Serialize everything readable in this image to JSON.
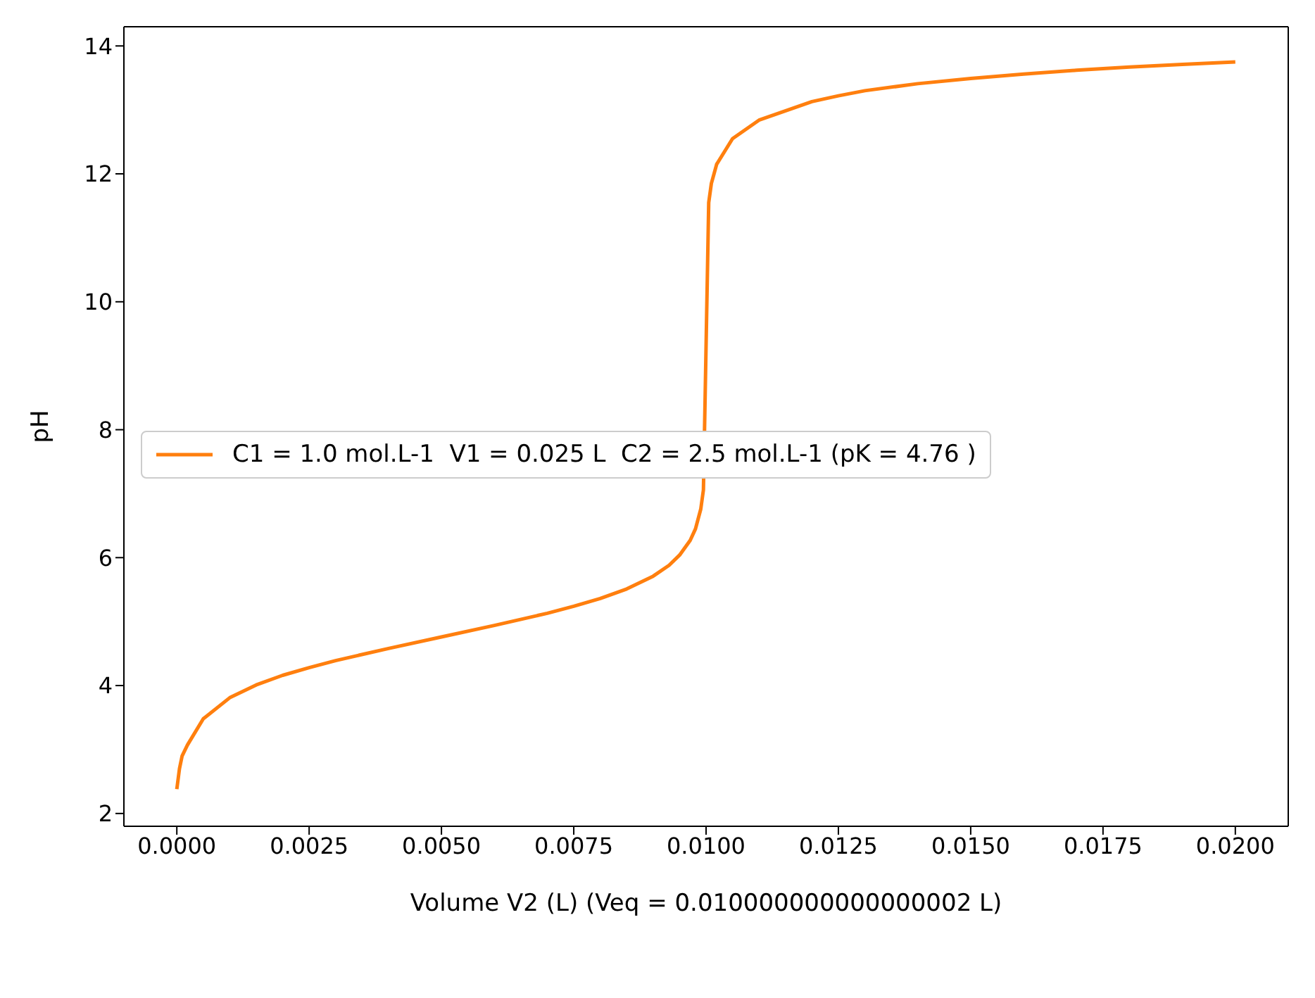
{
  "chart_data": {
    "type": "line",
    "xlabel": "Volume V2 (L) (Veq = 0.010000000000000002 L)",
    "ylabel": "pH",
    "x": [
      0,
      5e-05,
      0.0001,
      0.0002,
      0.0005,
      0.001,
      0.0015,
      0.002,
      0.0025,
      0.003,
      0.004,
      0.005,
      0.006,
      0.007,
      0.0075,
      0.008,
      0.0085,
      0.009,
      0.0093,
      0.0095,
      0.0097,
      0.0098,
      0.0099,
      0.00995,
      0.01,
      0.01005,
      0.0101,
      0.0102,
      0.0105,
      0.011,
      0.012,
      0.0125,
      0.013,
      0.014,
      0.015,
      0.016,
      0.017,
      0.018,
      0.019,
      0.02
    ],
    "series": [
      {
        "name": "C1 = 1.0 mol.L-1  V1 = 0.025 L  C2 = 2.5 mol.L-1 (pK = 4.76 )",
        "color": "#ff7f0e",
        "values": [
          2.38,
          2.7,
          2.9,
          3.07,
          3.48,
          3.81,
          4.01,
          4.16,
          4.28,
          4.39,
          4.58,
          4.76,
          4.94,
          5.13,
          5.24,
          5.36,
          5.51,
          5.71,
          5.88,
          6.04,
          6.27,
          6.45,
          6.76,
          7.06,
          9.31,
          11.55,
          11.85,
          12.15,
          12.55,
          12.84,
          13.13,
          13.22,
          13.3,
          13.41,
          13.49,
          13.56,
          13.62,
          13.67,
          13.71,
          13.75
        ]
      }
    ],
    "xlim": [
      -0.001,
      0.021
    ],
    "xticks": [
      {
        "value": 0,
        "label": "0.0000"
      },
      {
        "value": 0.0025,
        "label": "0.0025"
      },
      {
        "value": 0.005,
        "label": "0.0050"
      },
      {
        "value": 0.0075,
        "label": "0.0075"
      },
      {
        "value": 0.01,
        "label": "0.0100"
      },
      {
        "value": 0.0125,
        "label": "0.0125"
      },
      {
        "value": 0.015,
        "label": "0.0150"
      },
      {
        "value": 0.0175,
        "label": "0.0175"
      },
      {
        "value": 0.02,
        "label": "0.0200"
      }
    ],
    "ylim": [
      1.8,
      14.3
    ],
    "yticks": [
      2,
      4,
      6,
      8,
      10,
      12,
      14
    ],
    "legend": "center",
    "grid": false,
    "marker": "none",
    "line_style": "solid"
  }
}
